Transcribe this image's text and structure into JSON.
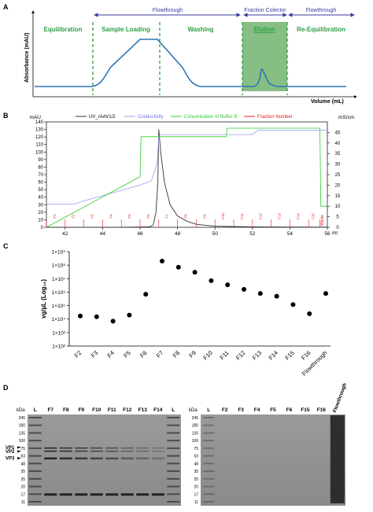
{
  "colors": {
    "phase_green": "#2e9e44",
    "flow_blue": "#3b3ba0",
    "trace_blue": "#2e75b6",
    "elution_fill": "#5fa85a",
    "uv": "#333333",
    "conductivity": "#9c9cf5",
    "buffer_b": "#2ecc2e",
    "fraction": "#e02020"
  },
  "panel_a": {
    "letter": "A",
    "ylabel": "Absorbance (mAU)",
    "xlabel": "Volume (mL)",
    "phases": [
      "Equilibration",
      "Sample Loading",
      "Washing",
      "Elution",
      "Re-Equilibration"
    ],
    "arrows": [
      "Flowthrough",
      "Fraction Colector",
      "Flowthrough"
    ]
  },
  "panel_b": {
    "letter": "B",
    "left_unit": "mAU",
    "right_unit": "mS/cm",
    "x_unit": "ml",
    "legend": [
      "UV_rAAV1/2",
      "Conductivity",
      "Concentration of Buffer B",
      "Fraction Number"
    ],
    "fraction_labels": [
      "F1",
      "F2",
      "F3",
      "F4",
      "F5",
      "F6",
      "F7",
      "F8",
      "F9",
      "F10",
      "F11",
      "F12",
      "F13",
      "F14",
      "F15",
      "F16"
    ],
    "waste_label": "Waste"
  },
  "panel_c": {
    "letter": "C",
    "ylabel": "vg/µL (Log₁₀)"
  },
  "panel_d": {
    "letter": "D",
    "kda_label": "kDa",
    "marker_sizes": [
      "245",
      "180",
      "135",
      "100",
      "75",
      "63",
      "48",
      "35",
      "25",
      "20",
      "17",
      "11"
    ],
    "left_lanes": [
      "L",
      "F7",
      "F8",
      "F9",
      "F10",
      "F11",
      "F12",
      "F13",
      "F14",
      "L"
    ],
    "right_lanes": [
      "L",
      "F2",
      "F3",
      "F4",
      "F5",
      "F6",
      "F15",
      "F16",
      "Flowthrough"
    ],
    "vp_labels": [
      "VP1",
      "VP2",
      "VP3"
    ]
  },
  "chart_data": [
    {
      "type": "line",
      "title": "",
      "xlabel": "Volume (mL)",
      "ylabel": "Absorbance (mAU)",
      "phases": [
        "Equilibration",
        "Sample Loading",
        "Washing",
        "Elution",
        "Re-Equilibration"
      ],
      "series": [
        {
          "values": "schematic UV trace: baseline, plateau during sample loading, drop during washing, peak during elution, baseline during re-equilibration"
        }
      ]
    },
    {
      "type": "line",
      "xlim": [
        41,
        56
      ],
      "x_ticks": [
        42,
        44,
        46,
        48,
        50,
        52,
        54,
        56
      ],
      "ylim_left": [
        0,
        140
      ],
      "y_ticks_left": [
        0,
        10,
        20,
        30,
        40,
        50,
        60,
        70,
        80,
        90,
        100,
        110,
        120,
        130,
        140
      ],
      "ylim_right": [
        0,
        50
      ],
      "y_ticks_right": [
        0,
        5,
        10,
        15,
        20,
        25,
        30,
        35,
        40,
        45
      ],
      "series": [
        {
          "name": "UV_rAAV1/2",
          "axis": "left",
          "x": [
            41,
            45,
            46.5,
            46.7,
            46.85,
            46.95,
            47.0,
            47.1,
            47.3,
            47.6,
            48.0,
            48.5,
            49.0,
            50.0,
            52,
            54,
            56
          ],
          "y": [
            0,
            0,
            0.5,
            3,
            20,
            60,
            130,
            100,
            60,
            30,
            15,
            8,
            4,
            1.5,
            0.5,
            0.3,
            0.2
          ]
        },
        {
          "name": "Conductivity",
          "axis": "right",
          "x": [
            41,
            42.5,
            43,
            44,
            45,
            46,
            46.6,
            46.9,
            47.0,
            47.1,
            52,
            52.3,
            56
          ],
          "y": [
            11,
            11,
            12.5,
            15,
            17.5,
            20,
            22,
            30,
            43,
            44,
            44,
            46,
            46
          ]
        },
        {
          "name": "Concentration of Buffer B",
          "axis": "right",
          "x": [
            41,
            46.0,
            46.05,
            50.6,
            50.65,
            55.6,
            55.65,
            56
          ],
          "y": [
            0,
            24,
            43,
            43,
            47,
            47,
            10,
            10
          ]
        },
        {
          "name": "Fraction Number",
          "axis": "left",
          "x": [
            41,
            42,
            43,
            44,
            45,
            46,
            47,
            48,
            49,
            50,
            51,
            52,
            53,
            54,
            55,
            55.6
          ],
          "y": [
            10,
            10,
            10,
            10,
            10,
            10,
            10,
            10,
            10,
            10,
            10,
            10,
            10,
            10,
            10,
            10
          ]
        }
      ]
    },
    {
      "type": "scatter",
      "categories": [
        "F2",
        "F3",
        "F4",
        "F5",
        "F6",
        "F7",
        "F8",
        "F9",
        "F10",
        "F11",
        "F12",
        "F13",
        "F14",
        "F15",
        "F16",
        "Flowthrough"
      ],
      "values": [
        17000.0,
        15000.0,
        7000.0,
        20000.0,
        700000.0,
        200000000.0,
        70000000.0,
        30000000.0,
        7000000.0,
        3500000.0,
        1600000.0,
        800000.0,
        500000.0,
        120000.0,
        25000.0,
        800000.0
      ],
      "ylabel": "vg/µL (Log₁₀)",
      "log_y": true,
      "ylim": [
        100,
        1000000000
      ],
      "y_ticks": [
        "1×10²",
        "1×10³",
        "1×10⁴",
        "1×10⁵",
        "1×10⁶",
        "1×10⁷",
        "1×10⁸",
        "1×10⁹"
      ]
    }
  ]
}
